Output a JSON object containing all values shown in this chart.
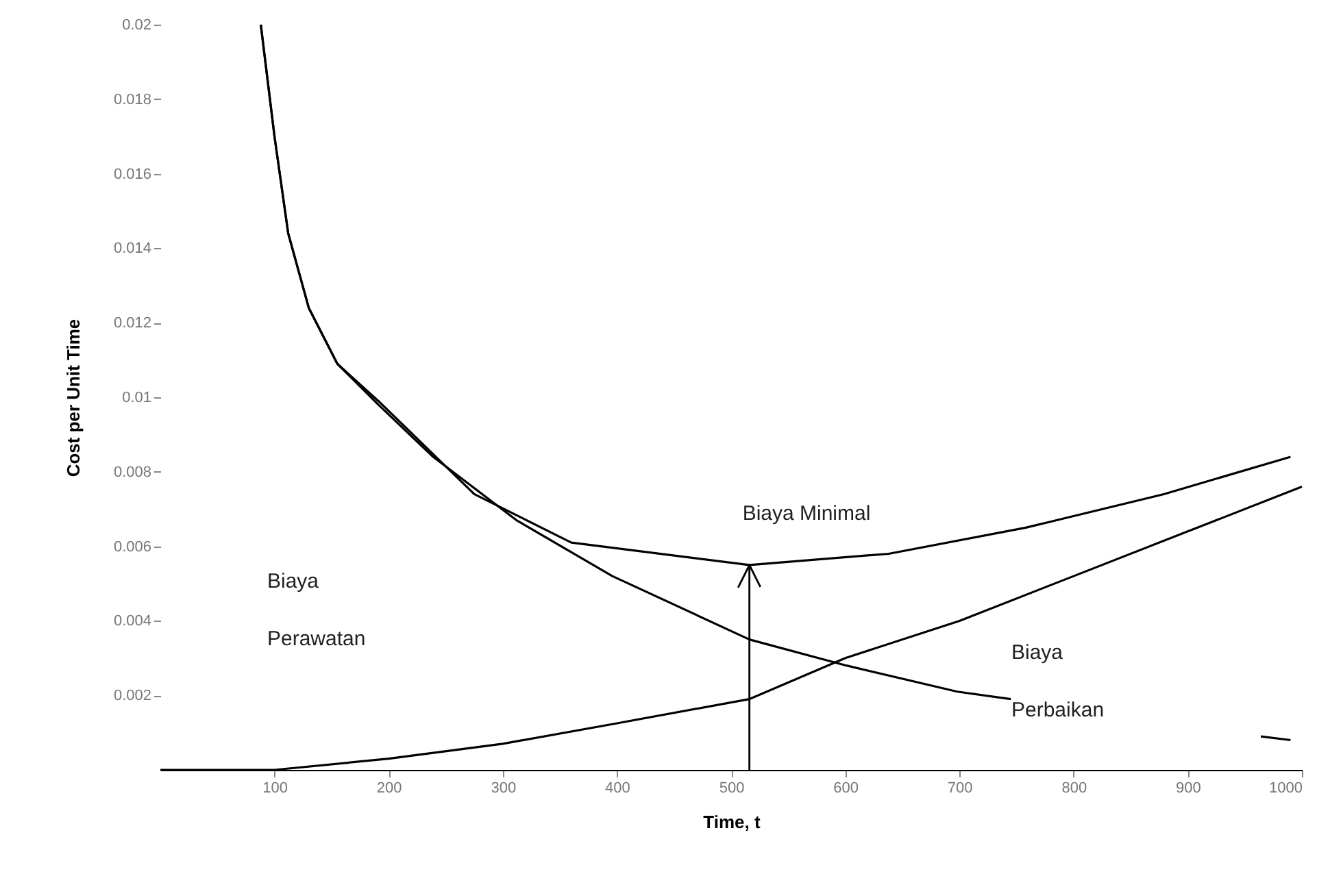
{
  "chart_data": {
    "type": "line",
    "xlabel": "Time, t",
    "ylabel": "Cost per Unit Time",
    "xlim": [
      0,
      1000
    ],
    "ylim": [
      0,
      0.02
    ],
    "xticks": [
      100,
      200,
      300,
      400,
      500,
      600,
      700,
      800,
      900,
      1000
    ],
    "yticks": [
      0.002,
      0.004,
      0.006,
      0.008,
      0.01,
      0.012,
      0.014,
      0.016,
      0.018,
      0.02
    ],
    "grid": false,
    "marker": "none",
    "line_style": "solid",
    "series": [
      {
        "color": "#000000",
        "x": [
          88,
          100,
          112,
          130,
          155,
          191,
          239,
          312,
          396,
          516,
          601,
          698,
          745,
          860,
          964,
          990
        ],
        "values": [
          0.02,
          0.017,
          0.0144,
          0.0124,
          0.0109,
          0.0098,
          0.0084,
          0.0067,
          0.0052,
          0.0035,
          0.0028,
          0.0021,
          0.0019,
          null,
          0.0009,
          0.0008
        ]
      },
      {
        "color": "#000000",
        "x": [
          0,
          100,
          200,
          300,
          400,
          516,
          600,
          700,
          800,
          900,
          1000
        ],
        "values": [
          0,
          0,
          0.0003,
          0.0007,
          0.00125,
          0.0019,
          0.003,
          0.004,
          0.0052,
          0.0064,
          0.0076
        ]
      },
      {
        "color": "#000000",
        "x": [
          88,
          100,
          112,
          130,
          155,
          191,
          275,
          360,
          516,
          638,
          758,
          879,
          990
        ],
        "values": [
          0.02,
          0.017,
          0.0144,
          0.0124,
          0.0109,
          0.0099,
          0.0074,
          0.0061,
          0.0055,
          0.0058,
          0.0065,
          0.0074,
          0.0084
        ]
      }
    ],
    "ref_lines": [
      {
        "axis": "x",
        "value": 516
      }
    ],
    "annotations": [
      {
        "text": "Biaya Minimal",
        "x": 516,
        "y": 0.0055
      },
      "Biaya Perawatan",
      "Biaya Perbaikan"
    ]
  }
}
